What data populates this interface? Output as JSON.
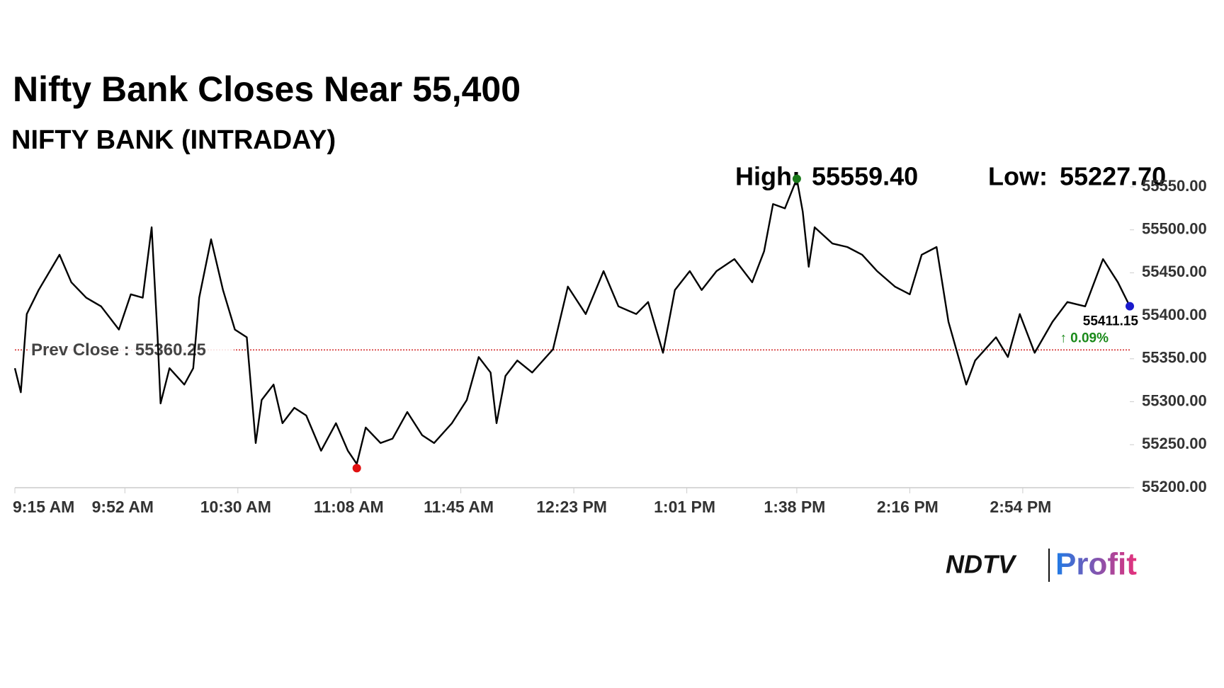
{
  "chart_data": {
    "type": "line",
    "title": "Nifty Bank Closes Near 55,400",
    "subtitle": "NIFTY BANK (INTRADAY)",
    "x": [
      "9:15",
      "9:17",
      "9:19",
      "9:23",
      "9:30",
      "9:34",
      "9:39",
      "9:44",
      "9:50",
      "9:54",
      "9:58",
      "10:01",
      "10:03",
      "10:04",
      "10:07",
      "10:12",
      "10:15",
      "10:17",
      "10:21",
      "10:25",
      "10:29",
      "10:33",
      "10:36",
      "10:38",
      "10:42",
      "10:45",
      "10:49",
      "10:53",
      "10:58",
      "11:03",
      "11:07",
      "11:10",
      "11:13",
      "11:18",
      "11:22",
      "11:27",
      "11:32",
      "11:36",
      "11:42",
      "11:47",
      "11:51",
      "11:55",
      "11:57",
      "12:00",
      "12:04",
      "12:09",
      "12:16",
      "12:21",
      "12:27",
      "12:33",
      "12:38",
      "12:44",
      "12:48",
      "12:53",
      "12:57",
      "13:02",
      "13:06",
      "13:11",
      "13:17",
      "13:23",
      "13:27",
      "13:30",
      "13:34",
      "13:38",
      "13:40",
      "13:42",
      "13:44",
      "13:50",
      "13:55",
      "14:00",
      "14:05",
      "14:11",
      "14:16",
      "14:20",
      "14:25",
      "14:29",
      "14:35",
      "14:38",
      "14:45",
      "14:49",
      "14:53",
      "14:58",
      "15:04",
      "15:09",
      "15:15",
      "15:21",
      "15:26",
      "15:30"
    ],
    "values": [
      55339,
      55311,
      55402,
      55430,
      55471,
      55439,
      55421,
      55411,
      55384,
      55425,
      55421,
      55503,
      55375,
      55298,
      55339,
      55320,
      55339,
      55421,
      55489,
      55430,
      55384,
      55375,
      55252,
      55302,
      55320,
      55275,
      55293,
      55284,
      55243,
      55275,
      55243,
      55227.7,
      55270,
      55252,
      55257,
      55288,
      55261,
      55252,
      55275,
      55302,
      55352,
      55334,
      55275,
      55330,
      55348,
      55334,
      55361,
      55434,
      55402,
      55452,
      55411,
      55402,
      55416,
      55357,
      55430,
      55452,
      55430,
      55452,
      55466,
      55439,
      55475,
      55530,
      55525,
      55559.4,
      55521,
      55457,
      55503,
      55484,
      55480,
      55471,
      55452,
      55434,
      55425,
      55471,
      55480,
      55393,
      55320,
      55348,
      55375,
      55352,
      55402,
      55357,
      55393,
      55416,
      55411,
      55466,
      55439,
      55411.15
    ],
    "color": "#000000",
    "xlim": [
      "9:15",
      "15:30"
    ],
    "xticks": [
      {
        "value": "9:15",
        "label": "9:15 AM"
      },
      {
        "value": "9:52",
        "label": "9:52 AM"
      },
      {
        "value": "10:30",
        "label": "10:30 AM"
      },
      {
        "value": "11:08",
        "label": "11:08 AM"
      },
      {
        "value": "11:45",
        "label": "11:45 AM"
      },
      {
        "value": "12:23",
        "label": "12:23 PM"
      },
      {
        "value": "13:01",
        "label": "1:01 PM"
      },
      {
        "value": "13:38",
        "label": "1:38 PM"
      },
      {
        "value": "14:16",
        "label": "2:16 PM"
      },
      {
        "value": "14:54",
        "label": "2:54 PM"
      }
    ],
    "ylim": [
      55200,
      55550
    ],
    "yticks": [
      {
        "value": 55200,
        "label": "55200.00"
      },
      {
        "value": 55250,
        "label": "55250.00"
      },
      {
        "value": 55300,
        "label": "55300.00"
      },
      {
        "value": 55350,
        "label": "55350.00"
      },
      {
        "value": 55400,
        "label": "55400.00"
      },
      {
        "value": 55450,
        "label": "55450.00"
      },
      {
        "value": 55500,
        "label": "55500.00"
      },
      {
        "value": 55550,
        "label": "55550.00"
      }
    ],
    "prev_close": {
      "label": "Prev Close :",
      "value": 55360.25,
      "color": "#cc0000"
    },
    "high": {
      "label": "High:",
      "value": 55559.4,
      "value_label": "55559.40",
      "x": "13:38",
      "color": "#1a7a1a"
    },
    "low": {
      "label": "Low:",
      "value": 55227.7,
      "value_label": "55227.70",
      "x": "11:10",
      "color": "#e01010"
    },
    "last": {
      "value": 55411.15,
      "x": "15:30",
      "change_label": "↑ 0.09%",
      "color": "#1a1acc"
    },
    "logo": {
      "brand": "NDTV",
      "product": "Profit"
    }
  }
}
